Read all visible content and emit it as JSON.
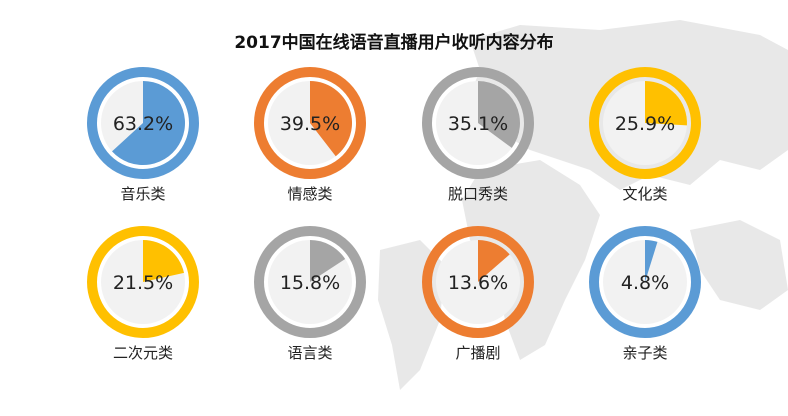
{
  "title": "2017中国在线语音直播用户收听内容分布",
  "chart_data": {
    "type": "pie",
    "title": "2017中国在线语音直播用户收听内容分布",
    "unit": "%",
    "items": [
      {
        "category": "音乐类",
        "value": 63.2,
        "label": "63.2%",
        "color": "#5B9BD5"
      },
      {
        "category": "情感类",
        "value": 39.5,
        "label": "39.5%",
        "color": "#ED7D31"
      },
      {
        "category": "脱口秀类",
        "value": 35.1,
        "label": "35.1%",
        "color": "#A5A5A5"
      },
      {
        "category": "文化类",
        "value": 25.9,
        "label": "25.9%",
        "color": "#FFC000"
      },
      {
        "category": "二次元类",
        "value": 21.5,
        "label": "21.5%",
        "color": "#FFC000"
      },
      {
        "category": "语言类",
        "value": 15.8,
        "label": "15.8%",
        "color": "#A5A5A5"
      },
      {
        "category": "广播剧",
        "value": 13.6,
        "label": "13.6%",
        "color": "#ED7D31"
      },
      {
        "category": "亲子类",
        "value": 4.8,
        "label": "4.8%",
        "color": "#5B9BD5"
      }
    ]
  },
  "colors": {
    "inner_background": "#F2F2F2",
    "map": "#E8E8E8"
  }
}
